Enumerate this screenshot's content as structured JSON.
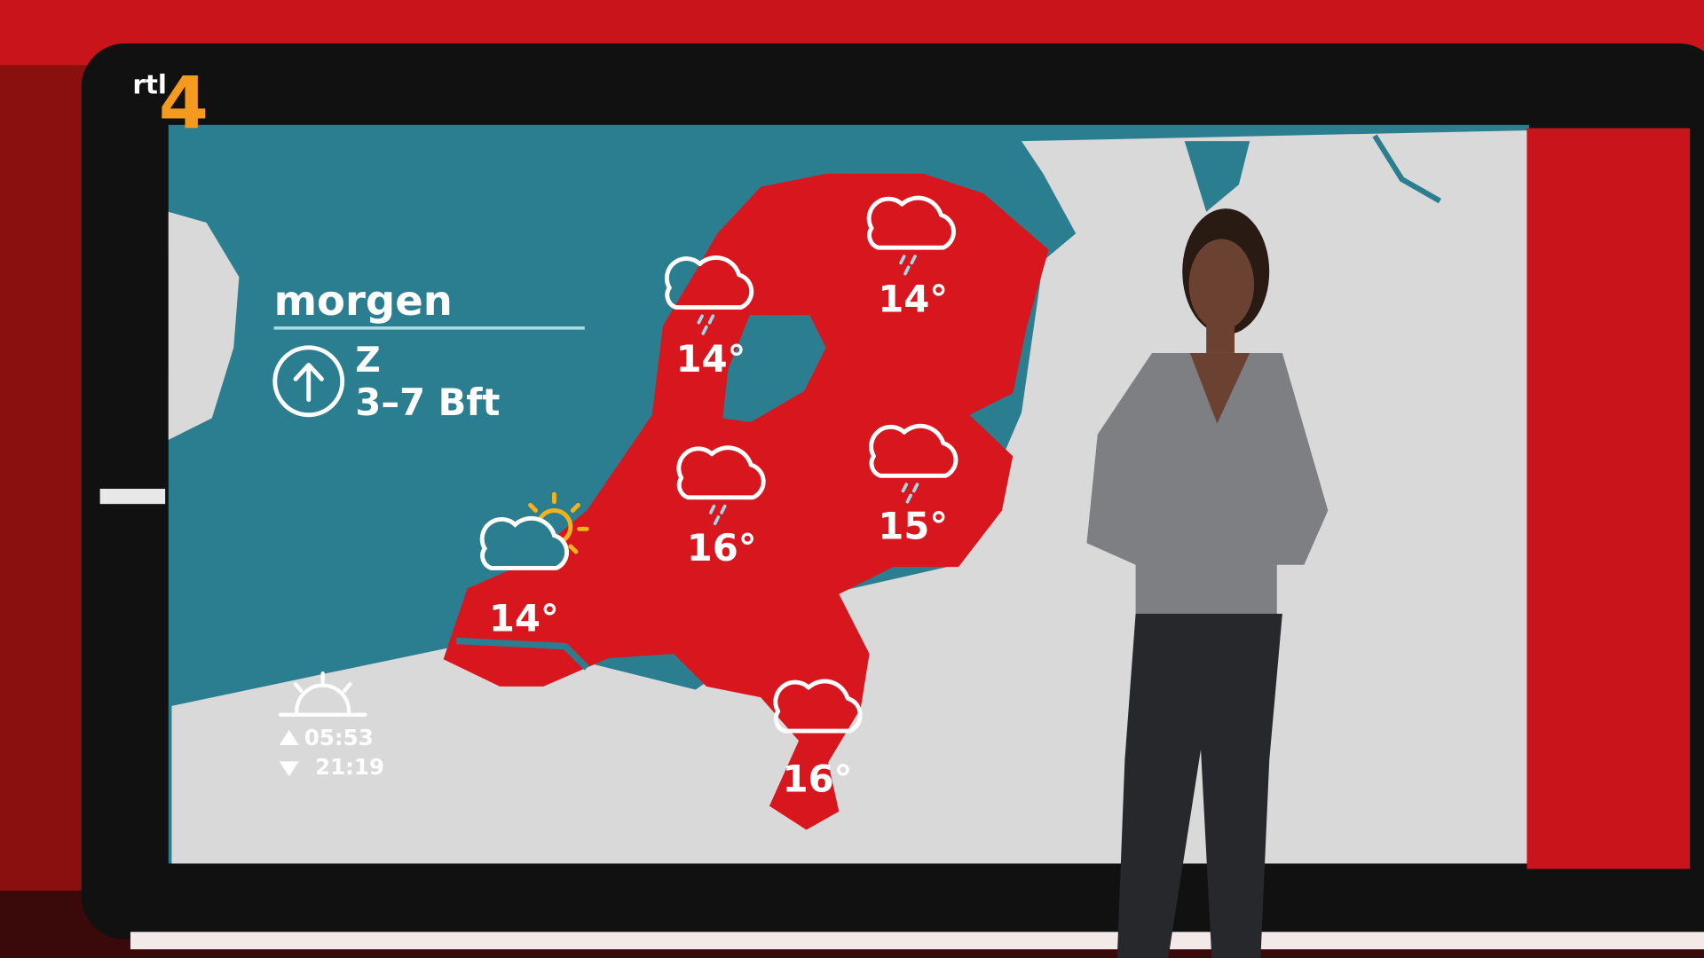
{
  "channel": {
    "logo_text": "rtl",
    "logo_number": "4"
  },
  "forecast": {
    "title": "morgen",
    "wind": {
      "direction": "Z",
      "strength": "3–7 Bft",
      "icon": "wind-arrow-icon"
    },
    "sun": {
      "icon": "sunrise-icon",
      "sunrise": "05:53",
      "sunset": "21:19"
    },
    "regions": [
      {
        "name": "north-east",
        "icon": "cloud-rain-icon",
        "temp": "14°"
      },
      {
        "name": "north-holland",
        "icon": "cloud-rain-icon",
        "temp": "14°"
      },
      {
        "name": "center",
        "icon": "cloud-rain-icon",
        "temp": "16°"
      },
      {
        "name": "east",
        "icon": "cloud-rain-icon",
        "temp": "15°"
      },
      {
        "name": "south-west",
        "icon": "partly-cloudy-icon",
        "temp": "14°"
      },
      {
        "name": "limburg",
        "icon": "cloud-icon",
        "temp": "16°"
      }
    ]
  },
  "colors": {
    "sea": "#2b7e90",
    "land": "#d9d9d9",
    "netherlands": "#d8161e",
    "studio_red": "#c8141a",
    "sun": "#f2b21b"
  }
}
